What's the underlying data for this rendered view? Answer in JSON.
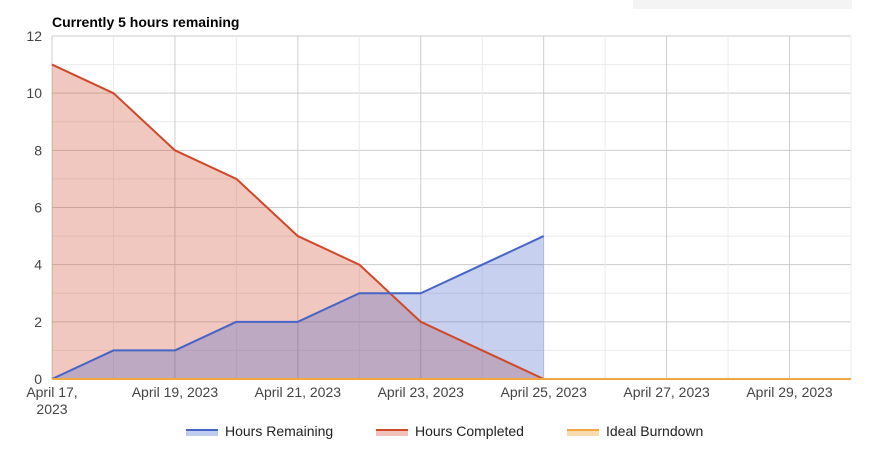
{
  "chart_data": {
    "type": "area",
    "title": "Currently 5 hours remaining",
    "xlabel": "",
    "ylabel": "",
    "ylim": [
      0,
      12
    ],
    "yticks": [
      0,
      2,
      4,
      6,
      8,
      10,
      12
    ],
    "xlim": [
      "2023-04-17",
      "2023-04-30"
    ],
    "xtick_labels": [
      {
        "date": "2023-04-17",
        "lines": [
          "April 17,",
          "2023"
        ]
      },
      {
        "date": "2023-04-19",
        "lines": [
          "April 19, 2023"
        ]
      },
      {
        "date": "2023-04-21",
        "lines": [
          "April 21, 2023"
        ]
      },
      {
        "date": "2023-04-23",
        "lines": [
          "April 23, 2023"
        ]
      },
      {
        "date": "2023-04-25",
        "lines": [
          "April 25, 2023"
        ]
      },
      {
        "date": "2023-04-27",
        "lines": [
          "April 27, 2023"
        ]
      },
      {
        "date": "2023-04-29",
        "lines": [
          "April 29, 2023"
        ]
      }
    ],
    "grid": true,
    "legend_position": "bottom",
    "x": [
      "2023-04-17",
      "2023-04-18",
      "2023-04-19",
      "2023-04-20",
      "2023-04-21",
      "2023-04-22",
      "2023-04-23",
      "2023-04-24",
      "2023-04-25"
    ],
    "series": [
      {
        "name": "Hours Remaining",
        "color": "#4565c8",
        "fill": "#c1cdee",
        "values": [
          0,
          1,
          1,
          2,
          2,
          3,
          3,
          4,
          5
        ]
      },
      {
        "name": "Hours Completed",
        "color": "#d0492a",
        "fill": "#f0c2ba",
        "values": [
          11,
          10,
          8,
          7,
          5,
          4,
          2,
          1,
          0
        ]
      },
      {
        "name": "Ideal Burndown",
        "color": "#f0a83f",
        "fill": "#f8dcb0",
        "x": [
          "2023-04-17",
          "2023-04-30"
        ],
        "values": [
          0,
          0
        ]
      }
    ]
  }
}
